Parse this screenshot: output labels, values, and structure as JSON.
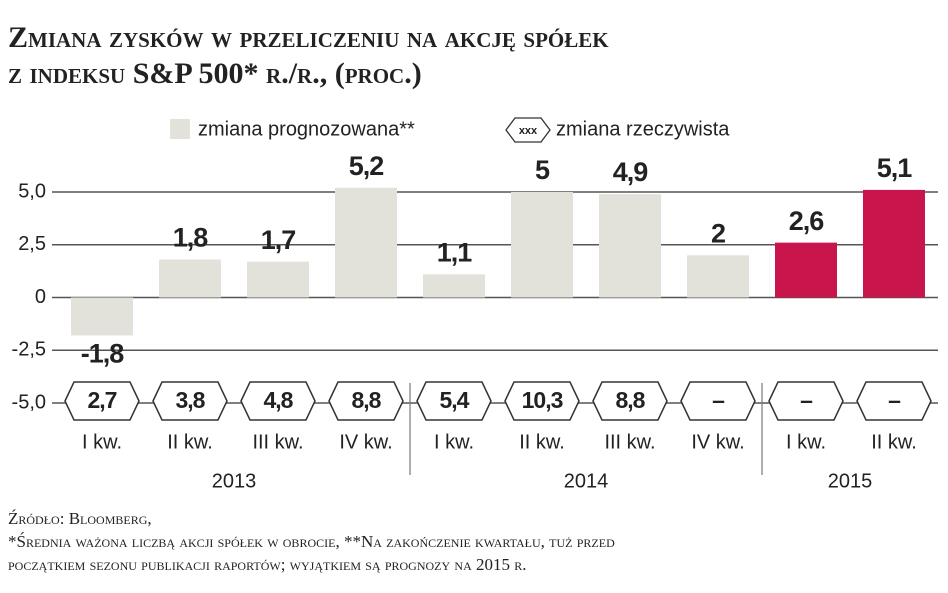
{
  "chart_data": {
    "type": "bar",
    "title": [
      "Zmiana zysków w przeliczeniu na akcję spółek",
      "z indeksu S&P 500* r./r., (proc.)"
    ],
    "categories": [
      "I kw.",
      "II kw.",
      "III kw.",
      "IV kw.",
      "I kw.",
      "II kw.",
      "III kw.",
      "IV kw.",
      "I kw.",
      "II kw."
    ],
    "years": [
      "2013",
      "2013",
      "2013",
      "2013",
      "2014",
      "2014",
      "2014",
      "2014",
      "2015",
      "2015"
    ],
    "series": [
      {
        "name": "zmiana prognozowana**",
        "color": "#e3e2da",
        "values": [
          -1.8,
          1.8,
          1.7,
          5.2,
          1.1,
          5,
          4.9,
          2,
          2.6,
          5.1
        ],
        "value_labels": [
          "-1,8",
          "1,8",
          "1,7",
          "5,2",
          "1,1",
          "5",
          "4,9",
          "2",
          "2,6",
          "5,1"
        ],
        "colors": [
          "#e3e2da",
          "#e3e2da",
          "#e3e2da",
          "#e3e2da",
          "#e3e2da",
          "#e3e2da",
          "#e3e2da",
          "#e3e2da",
          "#c8154b",
          "#c8154b"
        ]
      },
      {
        "name": "zmiana rzeczywista",
        "symbol_text": "xxx",
        "values": [
          2.7,
          3.8,
          4.8,
          8.8,
          5.4,
          10.3,
          8.8,
          null,
          null,
          null
        ],
        "value_labels": [
          "2,7",
          "3,8",
          "4,8",
          "8,8",
          "5,4",
          "10,3",
          "8,8",
          "–",
          "–",
          "–"
        ]
      }
    ],
    "ylim": [
      -5,
      5
    ],
    "yticks": [
      {
        "value": 5,
        "label": "5,0"
      },
      {
        "value": 2.5,
        "label": "2,5"
      },
      0,
      {
        "value": -2.5,
        "label": "-2,5"
      },
      {
        "value": -5,
        "label": "-5,0"
      }
    ],
    "grid": true,
    "notes": [
      "Źródło: Bloomberg,",
      "*Średnia ważona liczbą akcji spółek w obrocie, **Na zakończenie kwartału, tuż przed",
      "początkiem sezonu publikacji raportów; wyjątkiem są prognozy na 2015 r."
    ]
  }
}
